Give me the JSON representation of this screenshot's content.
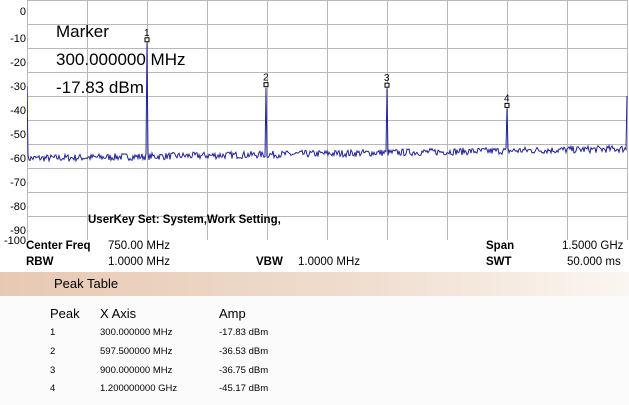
{
  "plot": {
    "y_ticks": [
      "0",
      "-10",
      "-20",
      "-30",
      "-40",
      "-50",
      "-60",
      "-70",
      "-80",
      "-90",
      "-100"
    ],
    "peak_labels": [
      "1",
      "2",
      "3",
      "4"
    ],
    "colors": {
      "trace": "#2020a0",
      "grid": "#b8b8b8",
      "peak_marker": "#000000"
    }
  },
  "marker": {
    "title": "Marker",
    "frequency": "300.000000 MHz",
    "amplitude": "-17.83 dBm"
  },
  "userkey": "UserKey Set:   System,Work Setting,",
  "settings": {
    "center_freq_label": "Center Freq",
    "center_freq_value": "750.00 MHz",
    "span_label": "Span",
    "span_value": "1.5000 GHz",
    "rbw_label": "RBW",
    "rbw_value": "1.0000 MHz",
    "vbw_label": "VBW",
    "vbw_value": "1.0000 MHz",
    "swt_label": "SWT",
    "swt_value": "50.000 ms"
  },
  "peak_table": {
    "title": "Peak Table",
    "columns": [
      "Peak",
      "X Axis",
      "Amp"
    ],
    "rows": [
      {
        "peak": "1",
        "x": "300.000000 MHz",
        "amp": "-17.83 dBm"
      },
      {
        "peak": "2",
        "x": "597.500000 MHz",
        "amp": "-36.53 dBm"
      },
      {
        "peak": "3",
        "x": "900.000000 MHz",
        "amp": "-36.75 dBm"
      },
      {
        "peak": "4",
        "x": "1.200000000 GHz",
        "amp": "-45.17 dBm"
      }
    ]
  },
  "chart_data": {
    "type": "line",
    "x_range_mhz": [
      0,
      1500
    ],
    "ylim": [
      -100,
      0
    ],
    "grid": true,
    "noise_floor_dbm": -65,
    "peaks": [
      {
        "label": "1",
        "x_mhz": 300.0,
        "amp_dbm": -17.83
      },
      {
        "label": "2",
        "x_mhz": 597.5,
        "amp_dbm": -36.53
      },
      {
        "label": "3",
        "x_mhz": 900.0,
        "amp_dbm": -36.75
      },
      {
        "label": "4",
        "x_mhz": 1200.0,
        "amp_dbm": -45.17
      }
    ],
    "edge_signals": [
      {
        "x_mhz": 0,
        "amp_dbm": -36
      },
      {
        "x_mhz": 1500,
        "amp_dbm": -40
      }
    ]
  }
}
